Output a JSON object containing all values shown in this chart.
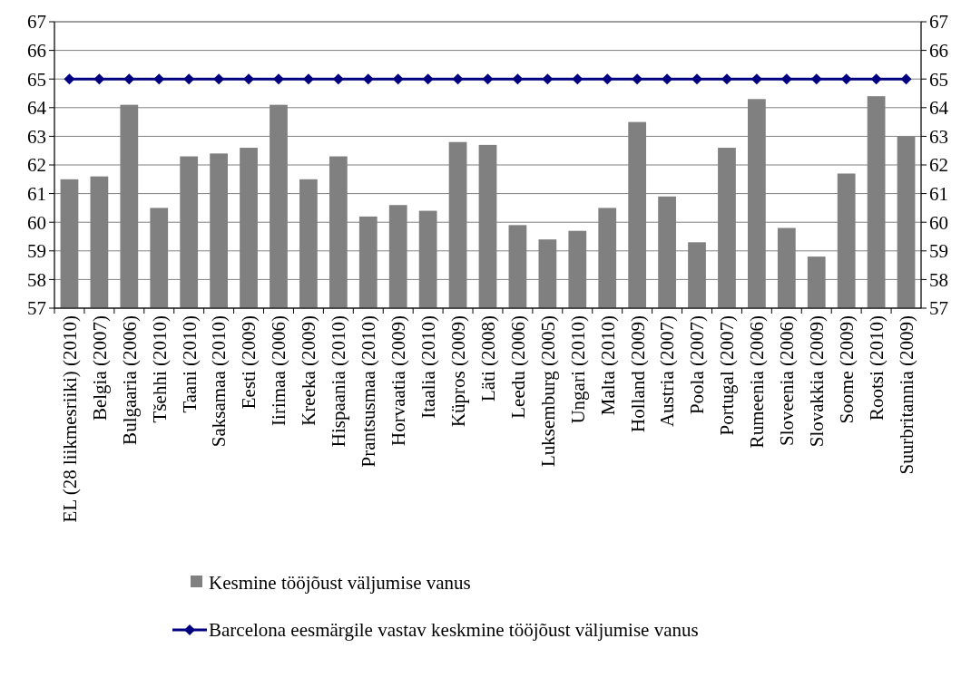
{
  "chart_data": {
    "type": "bar",
    "categories": [
      "EL (28 liikmesriiki) (2010)",
      "Belgia (2007)",
      "Bulgaaria (2006)",
      "Tšehhi (2010)",
      "Taani (2010)",
      "Saksamaa (2010)",
      "Eesti (2009)",
      "Iirimaa (2006)",
      "Kreeka (2009)",
      "Hispaania (2010)",
      "Prantsusmaa (2010)",
      "Horvaatia (2009)",
      "Itaalia (2010)",
      "Küpros (2009)",
      "Läti (2008)",
      "Leedu (2006)",
      "Luksemburg (2005)",
      "Ungari (2010)",
      "Malta (2010)",
      "Holland (2009)",
      "Austria (2007)",
      "Poola (2007)",
      "Portugal (2007)",
      "Rumeenia (2006)",
      "Sloveenia (2006)",
      "Slovakkia (2009)",
      "Soome (2009)",
      "Rootsi (2010)",
      "Suurbritannia (2009)"
    ],
    "series": [
      {
        "name": "Kesmine tööjõust väljumise vanus",
        "color": "#808080",
        "values": [
          61.5,
          61.6,
          64.1,
          60.5,
          62.3,
          62.4,
          62.6,
          64.1,
          61.5,
          62.3,
          60.2,
          60.6,
          60.4,
          62.8,
          62.7,
          59.9,
          59.4,
          59.7,
          60.5,
          63.5,
          60.9,
          59.3,
          62.6,
          64.3,
          59.8,
          58.8,
          61.7,
          64.4,
          63.0
        ]
      },
      {
        "name": "Barcelona eesmärgile vastav keskmine tööjõust väljumise vanus",
        "type": "line",
        "color": "#000080",
        "marker": "diamond",
        "values": [
          65,
          65,
          65,
          65,
          65,
          65,
          65,
          65,
          65,
          65,
          65,
          65,
          65,
          65,
          65,
          65,
          65,
          65,
          65,
          65,
          65,
          65,
          65,
          65,
          65,
          65,
          65,
          65,
          65
        ]
      }
    ],
    "ylim": [
      57,
      67
    ],
    "yticks": [
      57,
      58,
      59,
      60,
      61,
      62,
      63,
      64,
      65,
      66,
      67
    ],
    "y2lim": [
      57,
      67
    ],
    "y2ticks": [
      57,
      58,
      59,
      60,
      61,
      62,
      63,
      64,
      65,
      66,
      67
    ],
    "grid": "y",
    "legend": "bottom"
  }
}
